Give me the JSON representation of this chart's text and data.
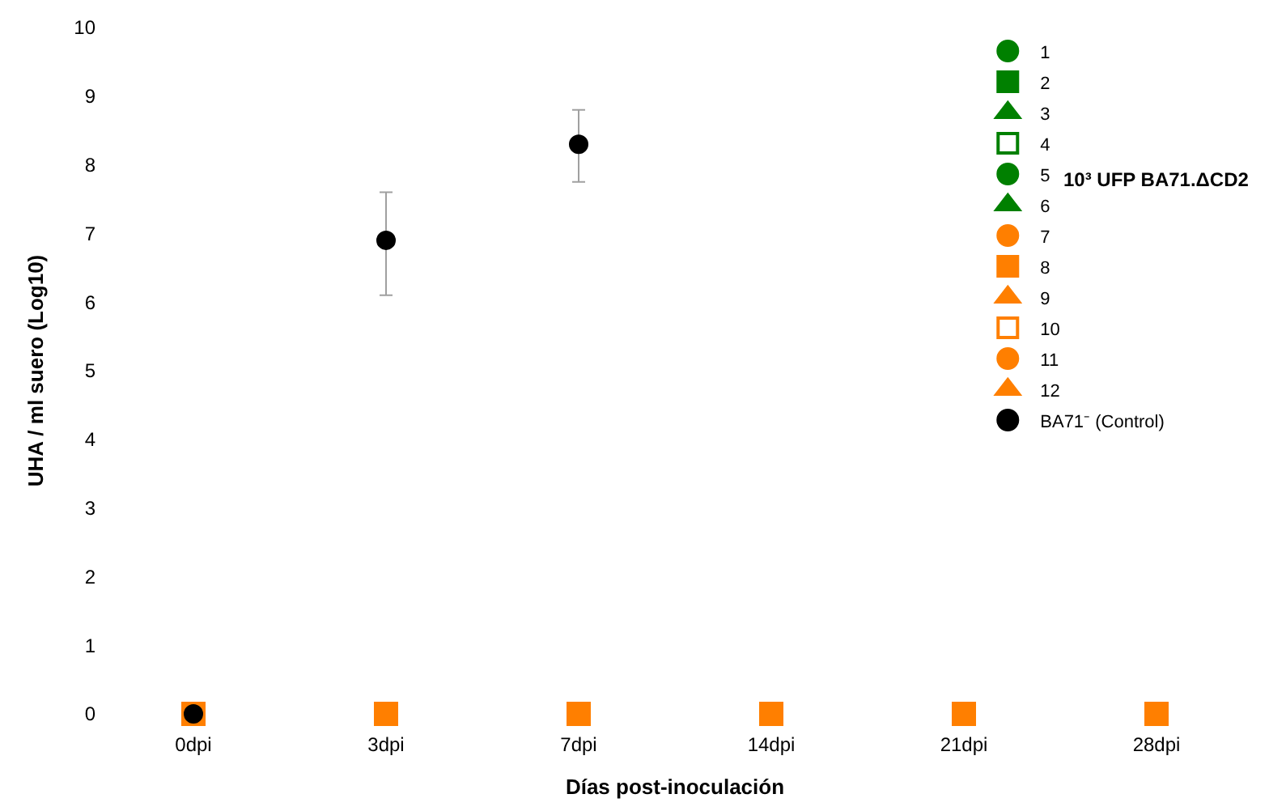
{
  "chart_data": {
    "type": "scatter",
    "xlabel": "Días post-inoculación",
    "ylabel": "UHA / ml suero (Log10)",
    "categories": [
      "0dpi",
      "3dpi",
      "7dpi",
      "14dpi",
      "21dpi",
      "28dpi"
    ],
    "ylim": [
      0,
      10
    ],
    "yticks": [
      0,
      1,
      2,
      3,
      4,
      5,
      6,
      7,
      8,
      9,
      10
    ],
    "legend": "top right",
    "annotations": [
      "10³ UFP BA71.ΔCD2"
    ],
    "series": [
      {
        "name": "1",
        "color": "#008000",
        "marker": "circle",
        "values": [
          null,
          null,
          null,
          null,
          null,
          null
        ]
      },
      {
        "name": "2",
        "color": "#008000",
        "marker": "square",
        "values": [
          null,
          null,
          null,
          null,
          null,
          null
        ]
      },
      {
        "name": "3",
        "color": "#008000",
        "marker": "triangle",
        "values": [
          null,
          null,
          null,
          null,
          null,
          null
        ]
      },
      {
        "name": "4",
        "color": "#008000",
        "marker": "square-open",
        "values": [
          null,
          null,
          null,
          null,
          null,
          null
        ]
      },
      {
        "name": "5",
        "color": "#008000",
        "marker": "circle",
        "values": [
          null,
          null,
          null,
          null,
          null,
          null
        ]
      },
      {
        "name": "6",
        "color": "#008000",
        "marker": "triangle",
        "values": [
          null,
          null,
          null,
          null,
          null,
          null
        ]
      },
      {
        "name": "7",
        "color": "#ff7f00",
        "marker": "circle",
        "values": [
          null,
          null,
          null,
          null,
          null,
          null
        ]
      },
      {
        "name": "8",
        "color": "#ff7f00",
        "marker": "square",
        "values": [
          0,
          0,
          0,
          0,
          0,
          0
        ]
      },
      {
        "name": "9",
        "color": "#ff7f00",
        "marker": "triangle",
        "values": [
          null,
          null,
          null,
          null,
          null,
          null
        ]
      },
      {
        "name": "10",
        "color": "#ff7f00",
        "marker": "square-open",
        "values": [
          null,
          null,
          null,
          null,
          null,
          null
        ]
      },
      {
        "name": "11",
        "color": "#ff7f00",
        "marker": "circle",
        "values": [
          null,
          null,
          null,
          null,
          null,
          null
        ]
      },
      {
        "name": "12",
        "color": "#ff7f00",
        "marker": "triangle",
        "values": [
          null,
          null,
          null,
          null,
          null,
          null
        ]
      },
      {
        "name": "BA71⁻ (Control)",
        "color": "#000000",
        "marker": "circle",
        "values": [
          0,
          6.9,
          8.3,
          null,
          null,
          null
        ],
        "errors": [
          null,
          [
            6.1,
            7.6
          ],
          [
            7.75,
            8.8
          ],
          null,
          null,
          null
        ]
      }
    ]
  }
}
